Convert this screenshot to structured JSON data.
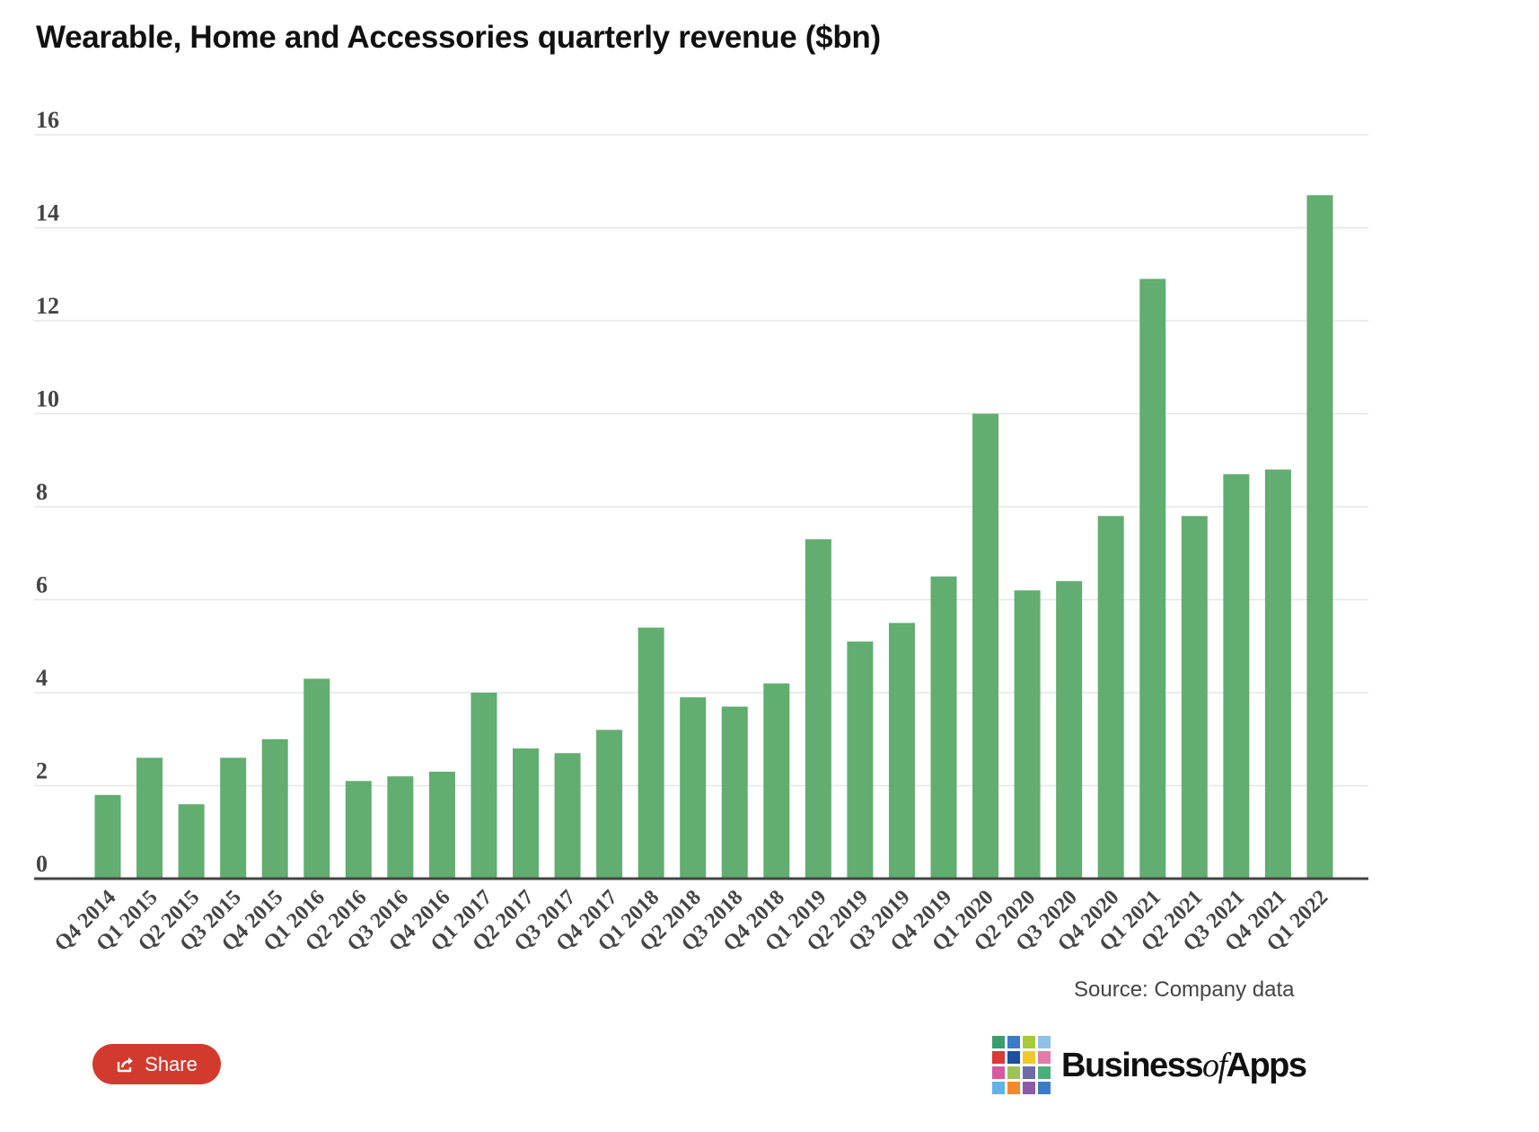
{
  "title": "Wearable, Home and Accessories quarterly revenue ($bn)",
  "source": "Source: Company data",
  "share_label": "Share",
  "logo": {
    "part1": "Business",
    "part2": "of",
    "part3": "Apps"
  },
  "colors": {
    "bar": "#62ad70",
    "grid": "#e6e6e6",
    "axis": "#444444",
    "share": "#d23a2e"
  },
  "chart_data": {
    "type": "bar",
    "title": "Wearable, Home and Accessories quarterly revenue ($bn)",
    "categories": [
      "Q4 2014",
      "Q1 2015",
      "Q2 2015",
      "Q3 2015",
      "Q4 2015",
      "Q1 2016",
      "Q2 2016",
      "Q3 2016",
      "Q4 2016",
      "Q1 2017",
      "Q2 2017",
      "Q3 2017",
      "Q4 2017",
      "Q1 2018",
      "Q2 2018",
      "Q3 2018",
      "Q4 2018",
      "Q1 2019",
      "Q2 2019",
      "Q3 2019",
      "Q4 2019",
      "Q1 2020",
      "Q2 2020",
      "Q3 2020",
      "Q4 2020",
      "Q1 2021",
      "Q2 2021",
      "Q3 2021",
      "Q4 2021",
      "Q1 2022"
    ],
    "values": [
      1.8,
      2.6,
      1.6,
      2.6,
      3.0,
      4.3,
      2.1,
      2.2,
      2.3,
      4.0,
      2.8,
      2.7,
      3.2,
      5.4,
      3.9,
      3.7,
      4.2,
      7.3,
      5.1,
      5.5,
      6.5,
      10.0,
      6.2,
      6.4,
      7.8,
      12.9,
      7.8,
      8.7,
      8.8,
      14.7
    ],
    "yticks": [
      "0",
      "2",
      "4",
      "6",
      "8",
      "10",
      "12",
      "14",
      "16"
    ],
    "ylim": [
      0,
      16
    ],
    "grid": true,
    "legend": "none"
  }
}
